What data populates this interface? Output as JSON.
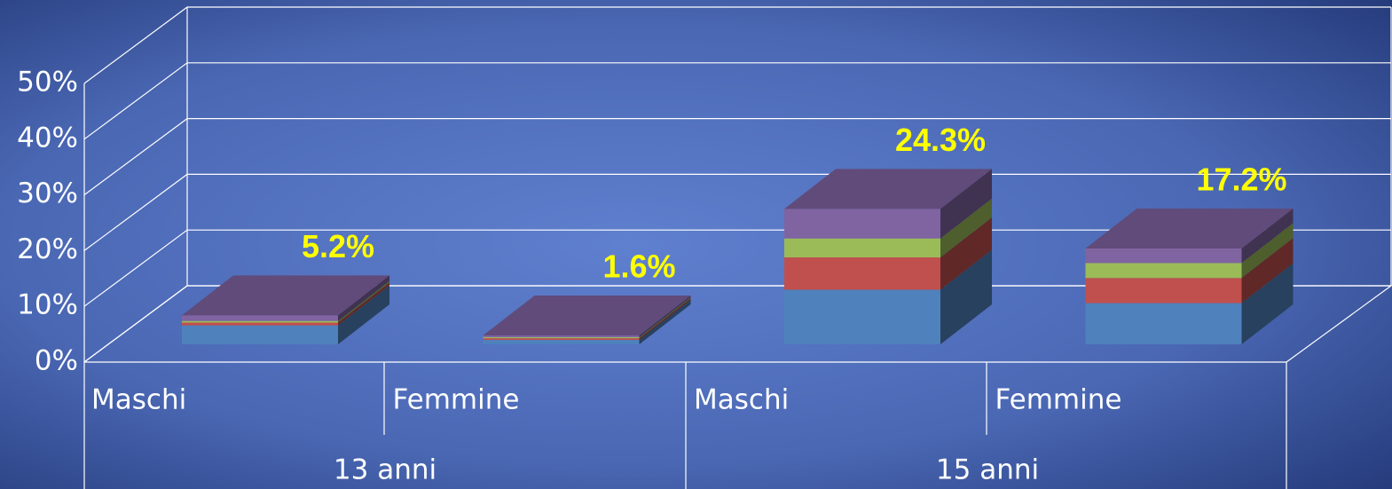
{
  "chart_data": {
    "type": "bar3d_stacked",
    "categories": [
      "Maschi",
      "Femmine",
      "Maschi",
      "Femmine"
    ],
    "groups": [
      "13 anni",
      "15 anni"
    ],
    "series": [
      {
        "color": "#4f81bd",
        "values": [
          3.4,
          0.8,
          9.8,
          7.4
        ]
      },
      {
        "color": "#c0504d",
        "values": [
          0.5,
          0.3,
          5.8,
          4.5
        ]
      },
      {
        "color": "#9bbb59",
        "values": [
          0.3,
          0.2,
          3.4,
          2.7
        ]
      },
      {
        "color": "#8064a2",
        "values": [
          1.0,
          0.3,
          5.3,
          2.6
        ]
      }
    ],
    "totals": [
      5.2,
      1.6,
      24.3,
      17.2
    ],
    "value_labels": [
      "5.2%",
      "1.6%",
      "24.3%",
      "17.2%"
    ],
    "ylim": [
      0,
      50
    ],
    "yticks": [
      {
        "value": 0,
        "label": "0%"
      },
      {
        "value": 10,
        "label": "10%"
      },
      {
        "value": 20,
        "label": "20%"
      },
      {
        "value": 30,
        "label": "30%"
      },
      {
        "value": 40,
        "label": "40%"
      },
      {
        "value": 50,
        "label": "50%"
      }
    ],
    "grid": true
  }
}
